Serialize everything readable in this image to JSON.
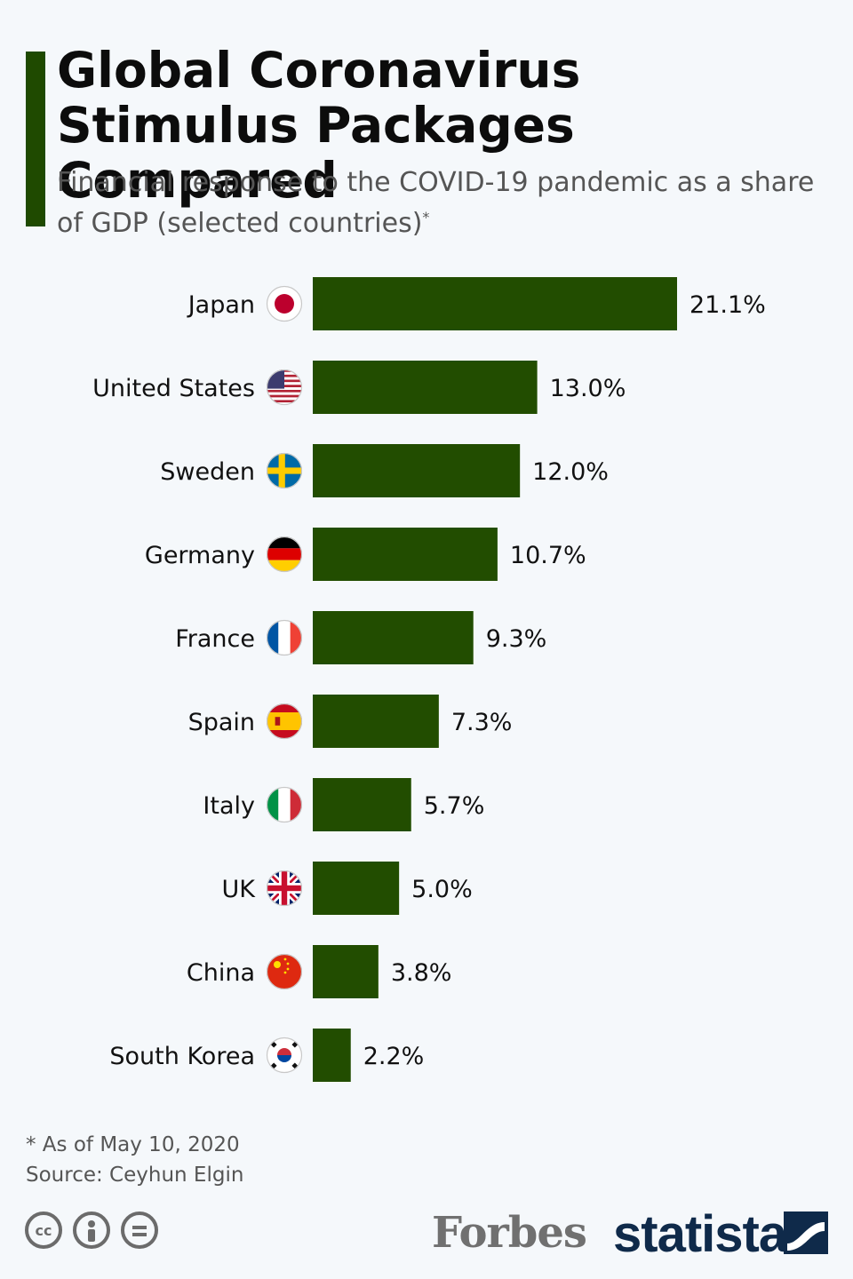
{
  "title": "Global Coronavirus Stimulus Packages Compared",
  "subtitle": "Financial response to the COVID-19 pandemic as a share of GDP (selected countries)",
  "subtitle_marker": "*",
  "footnote": {
    "note": "* As of May 10, 2020",
    "source": "Source: Ceyhun Elgin"
  },
  "license_icons": [
    "cc-icon",
    "attribution-icon",
    "no-derivatives-icon"
  ],
  "license_cc_text": "cc",
  "branding": {
    "forbes": "Forbes",
    "statista": "statista"
  },
  "colors": {
    "bar": "#224d00",
    "accent": "#1f4a00",
    "text": "#111111",
    "subtitle": "#555555"
  },
  "chart_data": {
    "type": "bar",
    "orientation": "horizontal",
    "categories": [
      "Japan",
      "United States",
      "Sweden",
      "Germany",
      "France",
      "Spain",
      "Italy",
      "UK",
      "China",
      "South Korea"
    ],
    "flags": [
      "japan-flag",
      "usa-flag",
      "sweden-flag",
      "germany-flag",
      "france-flag",
      "spain-flag",
      "italy-flag",
      "uk-flag",
      "china-flag",
      "south-korea-flag"
    ],
    "values": [
      21.1,
      13.0,
      12.0,
      10.7,
      9.3,
      7.3,
      5.7,
      5.0,
      3.8,
      2.2
    ],
    "labels": [
      "21.1%",
      "13.0%",
      "12.0%",
      "10.7%",
      "9.3%",
      "7.3%",
      "5.7%",
      "5.0%",
      "3.8%",
      "2.2%"
    ],
    "xlim": [
      0,
      21.1
    ],
    "grid": false,
    "legend": "none"
  }
}
